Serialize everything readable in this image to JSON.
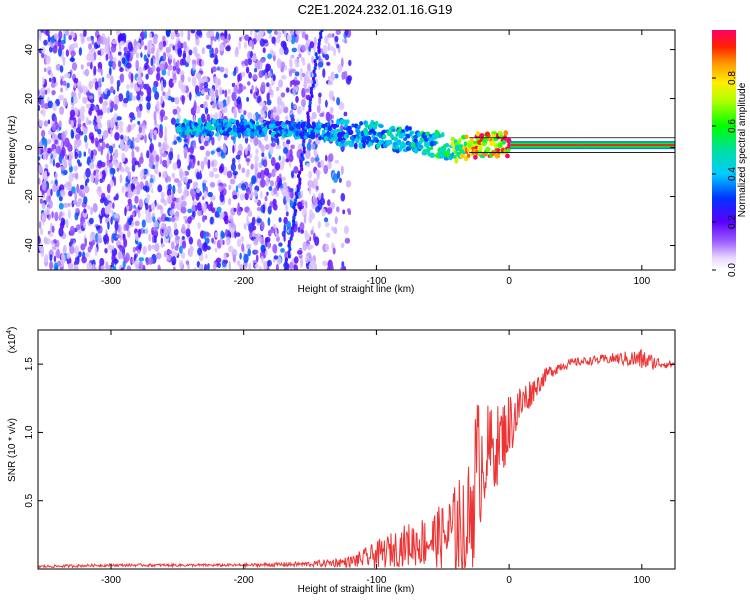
{
  "title": "C2E1.2024.232.01.16.G19",
  "chart_data": [
    {
      "type": "heatmap",
      "xlabel": "Height of straight line (km)",
      "ylabel": "Frequency (Hz)",
      "xlim": [
        -355,
        125
      ],
      "ylim": [
        -50,
        48
      ],
      "xticks": [
        -300,
        -200,
        -100,
        0,
        100
      ],
      "yticks": [
        -40,
        -20,
        0,
        20,
        40
      ],
      "colorbar": {
        "label": "Normalized spectral amplitude",
        "range": [
          0.0,
          1.0
        ],
        "ticks": [
          "0.0",
          "0.2",
          "0.4",
          "0.6",
          "0.8"
        ],
        "tick_values": [
          0.0,
          0.2,
          0.4,
          0.6,
          0.8
        ]
      },
      "ridge": {
        "description_points_x": [
          -250,
          -200,
          -150,
          -100,
          -75,
          -50,
          -40,
          -25,
          0,
          50,
          100,
          125
        ],
        "frequency": [
          8,
          8,
          7,
          5,
          3,
          1,
          -1,
          1,
          1,
          1,
          1,
          1
        ],
        "amplitude": [
          0.45,
          0.4,
          0.4,
          0.45,
          0.5,
          0.55,
          0.7,
          0.9,
          0.95,
          0.95,
          0.95,
          0.95
        ]
      },
      "noise_extent_x": [
        -355,
        -130
      ],
      "grid": false
    },
    {
      "type": "line",
      "xlabel": "Height of straight line (km)",
      "ylabel": "SNR (10 * v/v)",
      "scale_label": "(x10",
      "scale_exp": "4",
      "xlim": [
        -355,
        125
      ],
      "ylim": [
        0,
        1.75
      ],
      "xticks": [
        -300,
        -200,
        -100,
        0,
        100
      ],
      "yticks": [
        0.5,
        1.0,
        1.5
      ],
      "ytick_labels": [
        "0.5",
        "1.0",
        "1.5"
      ],
      "series": [
        {
          "color": "#ee3333",
          "x": [
            -355,
            -300,
            -250,
            -200,
            -150,
            -120,
            -100,
            -80,
            -60,
            -50,
            -40,
            -30,
            -25,
            -20,
            -10,
            0,
            10,
            20,
            30,
            40,
            50,
            60,
            80,
            100,
            110,
            125
          ],
          "y": [
            0.02,
            0.03,
            0.03,
            0.03,
            0.04,
            0.06,
            0.12,
            0.2,
            0.25,
            0.28,
            0.35,
            0.45,
            0.8,
            0.9,
            0.95,
            1.1,
            1.25,
            1.35,
            1.45,
            1.5,
            1.52,
            1.53,
            1.55,
            1.55,
            1.52,
            1.5
          ],
          "noise_amp": [
            0.01,
            0.01,
            0.01,
            0.01,
            0.02,
            0.04,
            0.1,
            0.15,
            0.2,
            0.25,
            0.35,
            0.45,
            0.6,
            0.4,
            0.3,
            0.25,
            0.15,
            0.08,
            0.05,
            0.04,
            0.03,
            0.03,
            0.04,
            0.08,
            0.05,
            0.02
          ]
        }
      ]
    }
  ]
}
